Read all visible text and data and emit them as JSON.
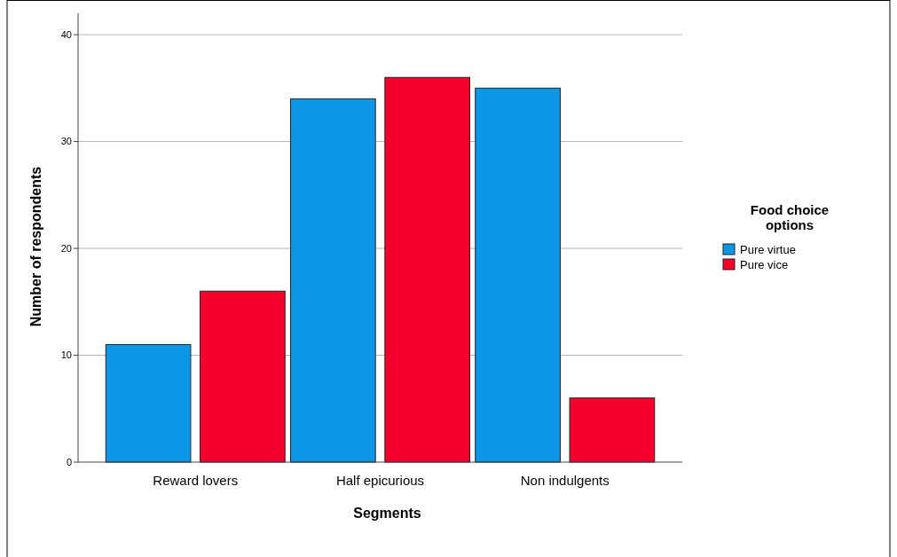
{
  "chart_data": {
    "type": "bar",
    "xlabel": "Segments",
    "ylabel": "Number of respondents",
    "legend_title": "Food choice options",
    "categories": [
      "Reward lovers",
      "Half epicurious",
      "Non indulgents"
    ],
    "series": [
      {
        "name": "Pure virtue",
        "color": "#0b96e6",
        "values": [
          11,
          34,
          35
        ]
      },
      {
        "name": "Pure vice",
        "color": "#f6002c",
        "values": [
          16,
          36,
          6
        ]
      }
    ],
    "ylim": [
      0,
      42
    ],
    "yticks": [
      0,
      10,
      20,
      30,
      40
    ],
    "grid": "y",
    "legend": "right"
  }
}
